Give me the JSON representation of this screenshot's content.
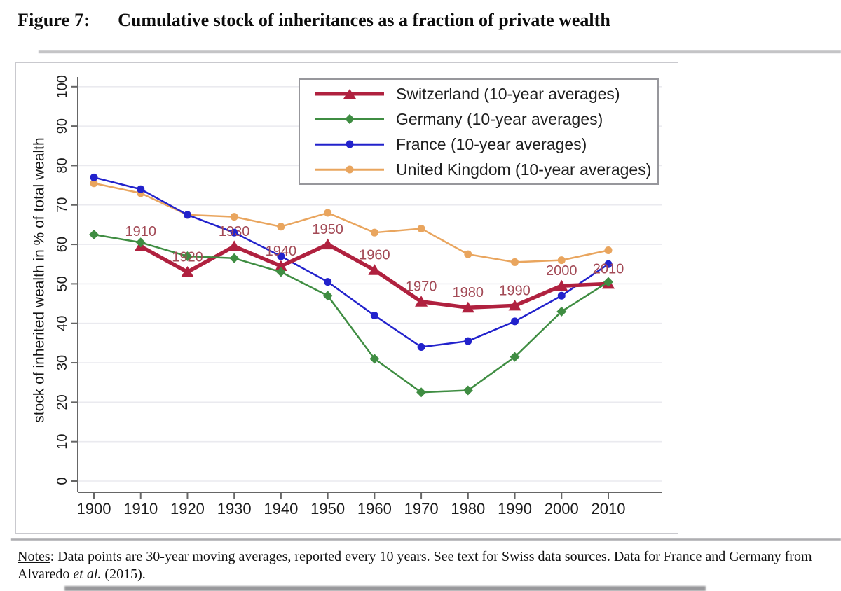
{
  "figure": {
    "label": "Figure 7:",
    "title": "Cumulative stock of inheritances as a fraction of private wealth"
  },
  "notes": {
    "label": "Notes",
    "text_before_italic": ": Data points are 30-year moving averages, reported every 10 years. See text for Swiss data sources. Data for France and Germany from Alvaredo ",
    "italic": "et al.",
    "text_after_italic": " (2015)."
  },
  "chart_data": {
    "type": "line",
    "x": [
      1900,
      1910,
      1920,
      1930,
      1940,
      1950,
      1960,
      1970,
      1980,
      1990,
      2000,
      2010
    ],
    "xlabel": "",
    "ylabel": "stock of inherited wealth in % of total wealth",
    "ylim": [
      0,
      100
    ],
    "ytick_step": 10,
    "grid": "horizontal",
    "legend_position": "top-center-inside",
    "colors": {
      "grid": "#eaeaef",
      "axis": "#666666",
      "tick_text": "#1c1c1c",
      "point_label": "#a34a56"
    },
    "series": [
      {
        "name": "Switzerland (10-year averages)",
        "color": "#b0213f",
        "marker": "triangle",
        "thick": true,
        "label_points_with_year": true,
        "values": [
          null,
          59.5,
          53,
          59.5,
          54.5,
          60,
          53.5,
          45.5,
          44,
          44.5,
          49.5,
          50
        ]
      },
      {
        "name": "Germany (10-year averages)",
        "color": "#3f8d42",
        "marker": "diamond",
        "thick": false,
        "label_points_with_year": false,
        "values": [
          62.5,
          60.5,
          57,
          56.5,
          53,
          47,
          31,
          22.5,
          23,
          31.5,
          43,
          50.5
        ]
      },
      {
        "name": "France (10-year averages)",
        "color": "#2222cc",
        "marker": "circle",
        "thick": false,
        "label_points_with_year": false,
        "values": [
          77,
          74,
          67.5,
          63,
          57,
          50.5,
          42,
          34,
          35.5,
          40.5,
          47,
          55
        ]
      },
      {
        "name": "United Kingdom (10-year averages)",
        "color": "#e9a55e",
        "marker": "circle",
        "thick": false,
        "label_points_with_year": false,
        "values": [
          75.5,
          73,
          67.5,
          67,
          64.5,
          68,
          63,
          64,
          57.5,
          55.5,
          56,
          58.5
        ]
      }
    ]
  }
}
